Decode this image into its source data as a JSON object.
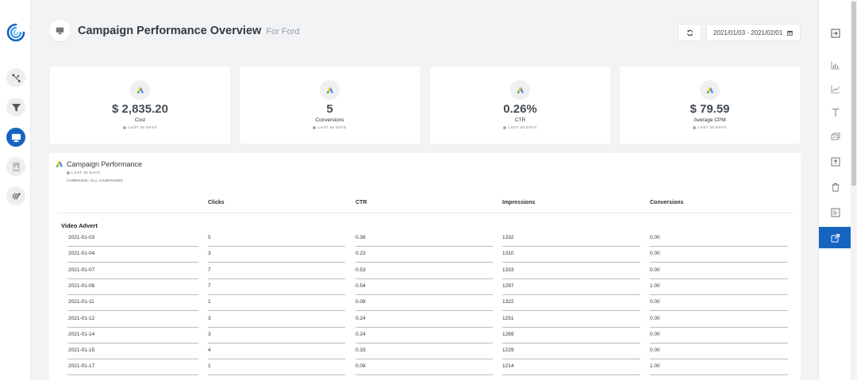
{
  "header": {
    "title": "Campaign Performance Overview",
    "subtitle": "For Ford",
    "date_range": "2021/01/03 - 2021/02/01"
  },
  "kpis": [
    {
      "value": "$ 2,835.20",
      "label": "Cost",
      "period": "LAST 30 DAYS"
    },
    {
      "value": "5",
      "label": "Conversions",
      "period": "LAST 30 DAYS"
    },
    {
      "value": "0.26%",
      "label": "CTR",
      "period": "LAST 30 DAYS"
    },
    {
      "value": "$ 79.59",
      "label": "Average CPM",
      "period": "LAST 30 DAYS"
    }
  ],
  "panel": {
    "title": "Campaign Performance",
    "period": "LAST 30 DAYS",
    "campaign": "CAMPAIGN: ALL CAMPAIGNS",
    "columns": [
      "Clicks",
      "CTR",
      "Impressions",
      "Conversions"
    ],
    "group": "Video Advert",
    "rows": [
      {
        "date": "2021-01-03",
        "clicks": "5",
        "ctr": "0.38",
        "impressions": "1332",
        "conversions": "0.00"
      },
      {
        "date": "2021-01-04",
        "clicks": "3",
        "ctr": "0.23",
        "impressions": "1310",
        "conversions": "0.00"
      },
      {
        "date": "2021-01-07",
        "clicks": "7",
        "ctr": "0.53",
        "impressions": "1333",
        "conversions": "0.00"
      },
      {
        "date": "2021-01-08",
        "clicks": "7",
        "ctr": "0.54",
        "impressions": "1297",
        "conversions": "1.00"
      },
      {
        "date": "2021-01-11",
        "clicks": "1",
        "ctr": "0.08",
        "impressions": "1322",
        "conversions": "0.00"
      },
      {
        "date": "2021-01-12",
        "clicks": "3",
        "ctr": "0.24",
        "impressions": "1251",
        "conversions": "0.00"
      },
      {
        "date": "2021-01-14",
        "clicks": "3",
        "ctr": "0.24",
        "impressions": "1269",
        "conversions": "0.00"
      },
      {
        "date": "2021-01-15",
        "clicks": "4",
        "ctr": "0.33",
        "impressions": "1229",
        "conversions": "0.00"
      },
      {
        "date": "2021-01-17",
        "clicks": "1",
        "ctr": "0.08",
        "impressions": "1214",
        "conversions": "1.00"
      }
    ]
  },
  "left_nav": [
    "logo-icon",
    "connections-icon",
    "filter-icon",
    "monitor-icon",
    "report-icon",
    "settings-icon"
  ],
  "right_nav": [
    "exit-icon",
    "bar-chart-icon",
    "line-chart-icon",
    "text-icon",
    "cards-icon",
    "upload-icon",
    "trash-icon",
    "table-icon",
    "share-icon"
  ],
  "colors": {
    "accent": "#1565c0",
    "background": "#f1f3f5",
    "google_ads_blue": "#4285f4",
    "google_ads_yellow": "#fbbc04",
    "google_ads_green": "#34a853"
  }
}
